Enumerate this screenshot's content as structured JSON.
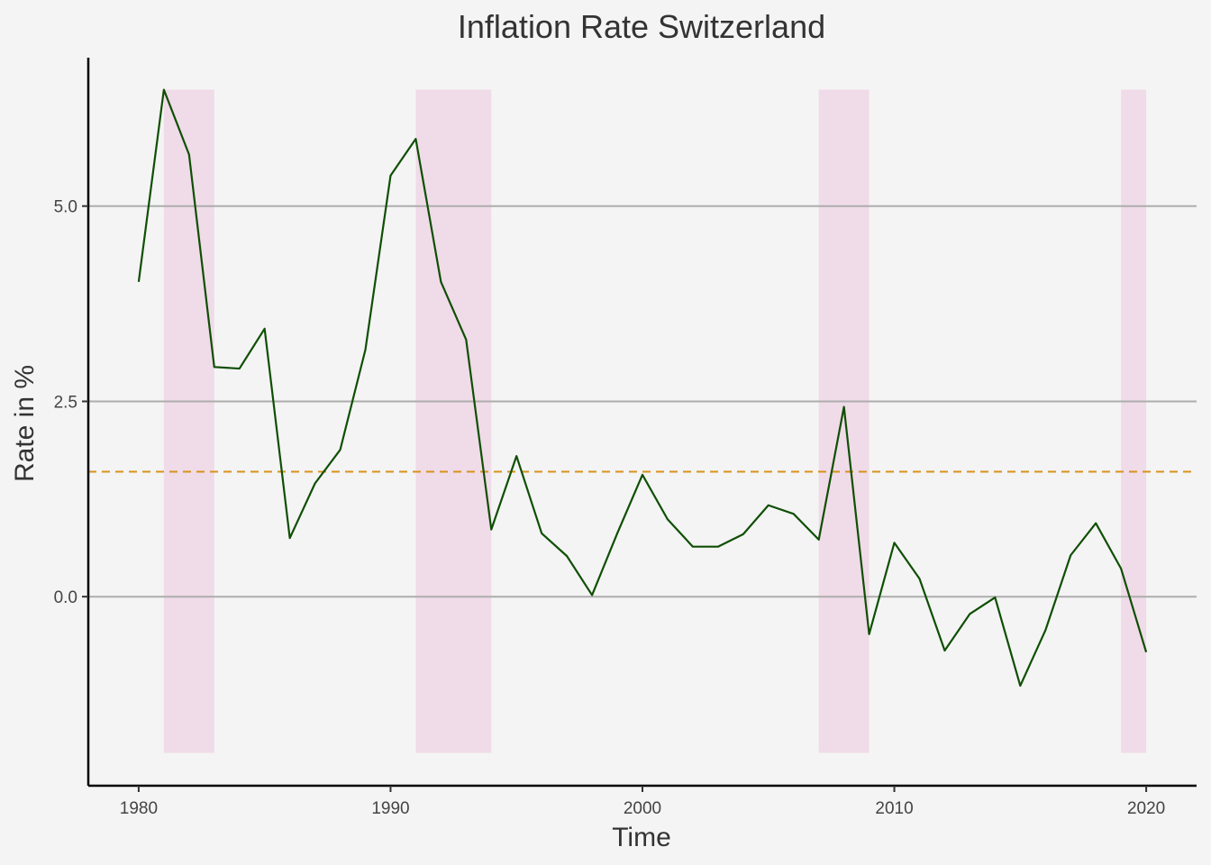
{
  "chart_data": {
    "type": "line",
    "title": "Inflation Rate Switzerland",
    "xlabel": "Time",
    "ylabel": "Rate in %",
    "xlim": [
      1978,
      2022
    ],
    "ylim": [
      -2.42,
      6.9
    ],
    "x_ticks": [
      1980,
      1990,
      2000,
      2010,
      2020
    ],
    "y_ticks": [
      0,
      2.5,
      5
    ],
    "y_tick_labels": [
      "0.0",
      "2.5",
      "5.0"
    ],
    "grid": "horizontal",
    "series": [
      {
        "color": "#0f4f04",
        "x": [
          1980,
          1981,
          1982,
          1983,
          1984,
          1985,
          1986,
          1987,
          1988,
          1989,
          1990,
          1991,
          1992,
          1993,
          1994,
          1995,
          1996,
          1997,
          1998,
          1999,
          2000,
          2001,
          2002,
          2003,
          2004,
          2005,
          2006,
          2007,
          2008,
          2009,
          2010,
          2011,
          2012,
          2013,
          2014,
          2015,
          2016,
          2017,
          2018,
          2019,
          2020
        ],
        "y": [
          4.03,
          6.49,
          5.66,
          2.94,
          2.92,
          3.43,
          0.75,
          1.45,
          1.88,
          3.16,
          5.39,
          5.86,
          4.03,
          3.29,
          0.86,
          1.8,
          0.81,
          0.52,
          0.02,
          0.81,
          1.56,
          0.99,
          0.64,
          0.64,
          0.8,
          1.17,
          1.06,
          0.73,
          2.43,
          -0.48,
          0.69,
          0.23,
          -0.69,
          -0.22,
          -0.01,
          -1.14,
          -0.43,
          0.53,
          0.94,
          0.36,
          -0.71
        ]
      }
    ],
    "reference_line": {
      "value": 1.6,
      "color": "#d9921a",
      "style": "dashed"
    },
    "shaded_periods": {
      "color": "#f0dbe8",
      "ranges": [
        [
          1981,
          1983
        ],
        [
          1991,
          1994
        ],
        [
          2007,
          2009
        ],
        [
          2019,
          2020
        ]
      ],
      "ymin": -2.0,
      "ymax": 6.49
    }
  }
}
